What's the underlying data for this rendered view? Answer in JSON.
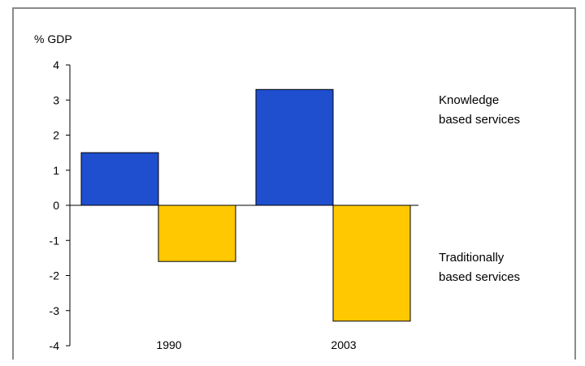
{
  "chart_data": {
    "type": "bar",
    "ylabel": "% GDP",
    "categories": [
      "1990",
      "2003"
    ],
    "series": [
      {
        "name": "Knowledge based services",
        "label_lines": [
          "Knowledge",
          "based services"
        ],
        "values": [
          1.5,
          3.3
        ],
        "color": "#1f4fcf"
      },
      {
        "name": "Traditionally based services",
        "label_lines": [
          "Traditionally",
          "based services"
        ],
        "values": [
          -1.6,
          -3.3
        ],
        "color": "#ffc800"
      }
    ],
    "ylim": [
      -4,
      4
    ],
    "yticks": [
      "4",
      "3",
      "2",
      "1",
      "0",
      "-1",
      "-2",
      "-3",
      "-4"
    ],
    "grid": false,
    "legend": "right"
  }
}
